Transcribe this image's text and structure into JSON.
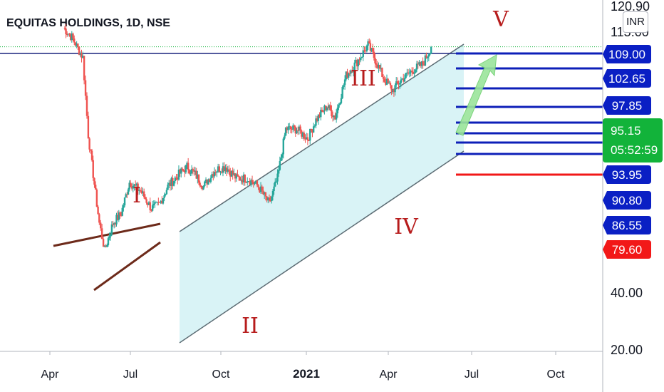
{
  "header": {
    "title": "EQUITAS HOLDINGS, 1D, NSE",
    "currency_button": "INR"
  },
  "colors": {
    "up": "#26a69a",
    "down": "#ef5350",
    "channel_fill": "#d2f1f4",
    "wave_label": "#b71c1c",
    "target_line": "#0d1fb8",
    "stop_line": "#f21818",
    "resistance_line": "#1a237e",
    "wedge": "#6d2a1a",
    "price_badge": "#12b33a",
    "stop_badge": "#f21818",
    "target_badge": "#0a1fc4",
    "arrow": "#9be59b"
  },
  "chart_data": {
    "type": "candlestick",
    "title": "EQUITAS HOLDINGS, 1D, NSE",
    "y_scale": "log",
    "ylim": [
      19.5,
      125
    ],
    "x_ticks": [
      "Apr",
      "Jul",
      "Oct",
      "2021",
      "Apr",
      "Jul",
      "Oct"
    ],
    "y_ticks": [
      "120.90",
      "115.00",
      "40.00",
      "20.00"
    ],
    "current_price": {
      "value": "95.15",
      "countdown": "05:52:59"
    },
    "target_levels": [
      "109.00",
      "102.65",
      "97.85"
    ],
    "support_levels": [
      "93.95",
      "90.80",
      "86.55"
    ],
    "stop_level": "79.60",
    "wave_labels": [
      "I",
      "II",
      "III",
      "IV",
      "V"
    ],
    "series": [
      {
        "t": 0.5,
        "c": 105
      },
      {
        "t": 0.8,
        "c": 100
      },
      {
        "t": 1.2,
        "c": 90
      },
      {
        "t": 1.4,
        "c": 60
      },
      {
        "t": 1.8,
        "c": 38
      },
      {
        "t": 2.0,
        "c": 33
      },
      {
        "t": 2.3,
        "c": 38
      },
      {
        "t": 2.6,
        "c": 40
      },
      {
        "t": 2.9,
        "c": 47
      },
      {
        "t": 3.3,
        "c": 45
      },
      {
        "t": 3.7,
        "c": 41
      },
      {
        "t": 4.0,
        "c": 42
      },
      {
        "t": 4.3,
        "c": 46
      },
      {
        "t": 4.7,
        "c": 49
      },
      {
        "t": 5.0,
        "c": 51
      },
      {
        "t": 5.3,
        "c": 49
      },
      {
        "t": 5.6,
        "c": 46
      },
      {
        "t": 6.0,
        "c": 50
      },
      {
        "t": 6.4,
        "c": 51
      },
      {
        "t": 6.8,
        "c": 48
      },
      {
        "t": 7.2,
        "c": 48
      },
      {
        "t": 7.6,
        "c": 46
      },
      {
        "t": 8.0,
        "c": 42
      },
      {
        "t": 8.3,
        "c": 48
      },
      {
        "t": 8.6,
        "c": 62
      },
      {
        "t": 9.0,
        "c": 62
      },
      {
        "t": 9.4,
        "c": 59
      },
      {
        "t": 9.7,
        "c": 65
      },
      {
        "t": 10.1,
        "c": 70
      },
      {
        "t": 10.4,
        "c": 66
      },
      {
        "t": 10.8,
        "c": 82
      },
      {
        "t": 11.2,
        "c": 88
      },
      {
        "t": 11.6,
        "c": 96
      },
      {
        "t": 11.9,
        "c": 88
      },
      {
        "t": 12.2,
        "c": 80
      },
      {
        "t": 12.5,
        "c": 76
      },
      {
        "t": 12.8,
        "c": 80
      },
      {
        "t": 13.2,
        "c": 84
      },
      {
        "t": 13.6,
        "c": 87
      },
      {
        "t": 13.9,
        "c": 95
      }
    ]
  }
}
